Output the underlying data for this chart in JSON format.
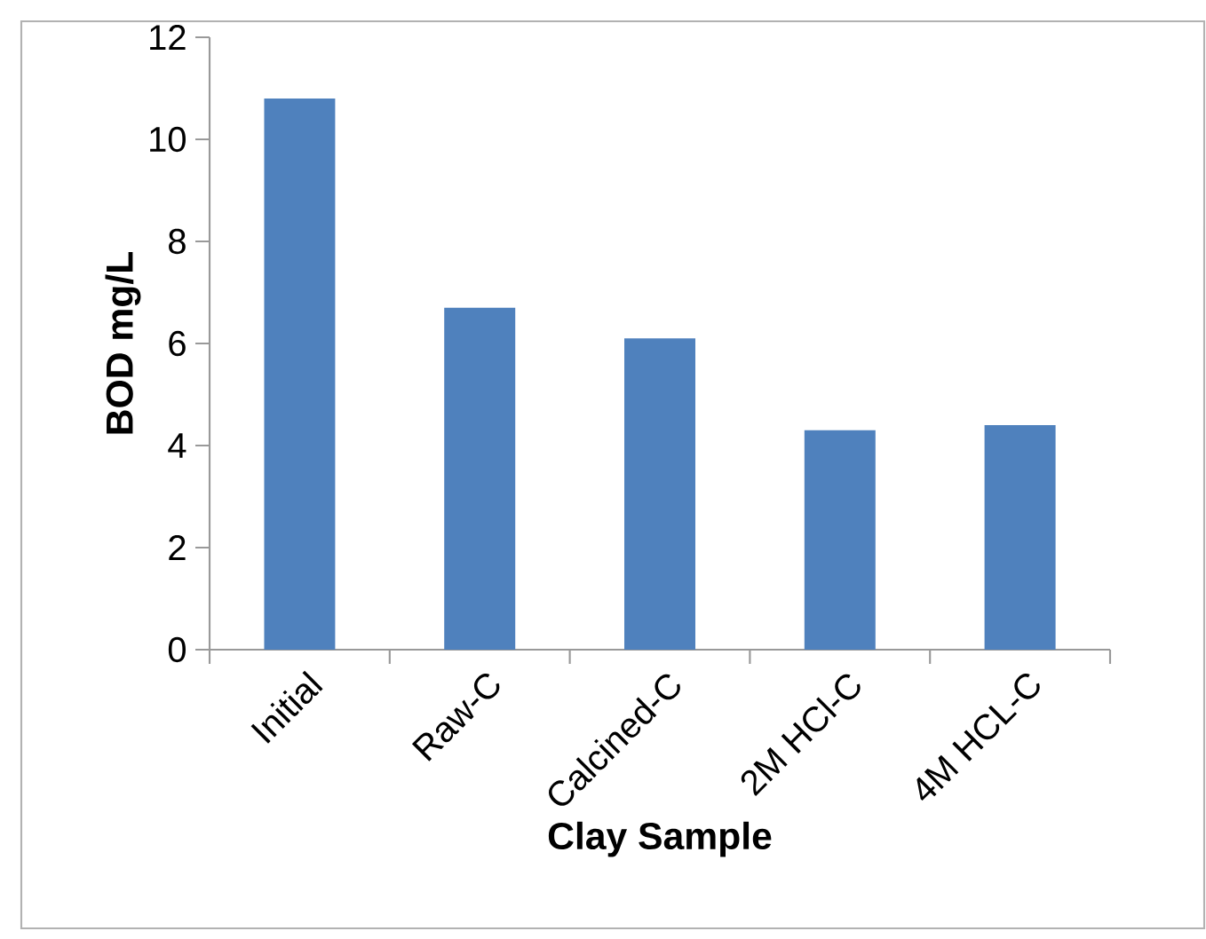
{
  "chart_data": {
    "type": "bar",
    "xlabel": "Clay Sample",
    "ylabel": "BOD mg/L",
    "categories": [
      "Initial",
      "Raw-C",
      "Calcined-C",
      "2M HCl-C",
      "4M HCL-C"
    ],
    "values": [
      10.8,
      6.7,
      6.1,
      4.3,
      4.4
    ],
    "color": "#4f81bd",
    "ylim": [
      0,
      12
    ],
    "yticks": [
      0,
      2,
      4,
      6,
      8,
      10,
      12
    ]
  }
}
